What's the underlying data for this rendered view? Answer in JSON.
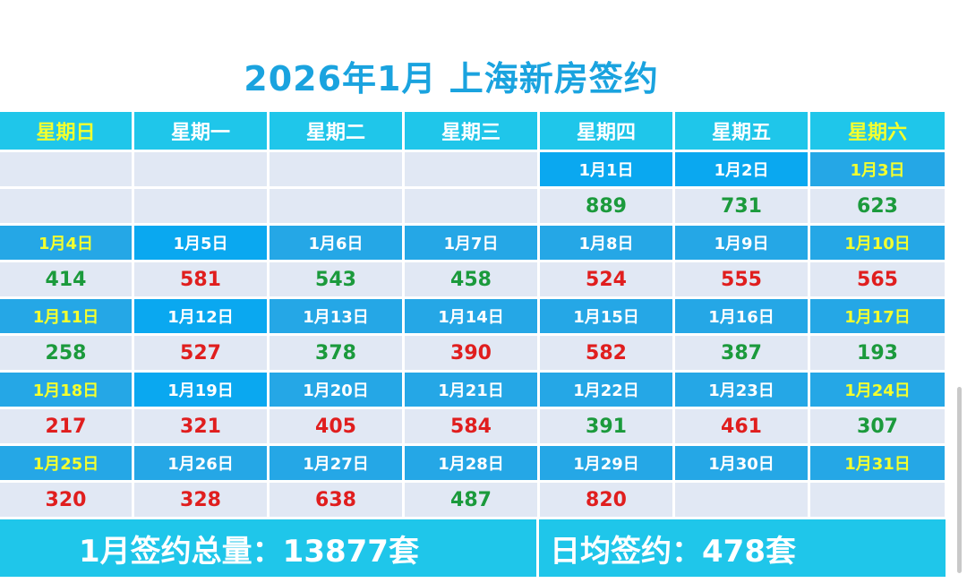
{
  "title": "2026年1月 上海新房签约",
  "weekdays": [
    "星期日",
    "星期一",
    "星期二",
    "星期三",
    "星期四",
    "星期五",
    "星期六"
  ],
  "weeks": [
    {
      "dates": [
        "",
        "",
        "",
        "",
        "1月1日",
        "1月2日",
        "1月3日"
      ],
      "values": [
        "",
        "",
        "",
        "",
        "889",
        "731",
        "623"
      ]
    },
    {
      "dates": [
        "1月4日",
        "1月5日",
        "1月6日",
        "1月7日",
        "1月8日",
        "1月9日",
        "1月10日"
      ],
      "values": [
        "414",
        "581",
        "543",
        "458",
        "524",
        "555",
        "565"
      ]
    },
    {
      "dates": [
        "1月11日",
        "1月12日",
        "1月13日",
        "1月14日",
        "1月15日",
        "1月16日",
        "1月17日"
      ],
      "values": [
        "258",
        "527",
        "378",
        "390",
        "582",
        "387",
        "193"
      ]
    },
    {
      "dates": [
        "1月18日",
        "1月19日",
        "1月20日",
        "1月21日",
        "1月22日",
        "1月23日",
        "1月24日"
      ],
      "values": [
        "217",
        "321",
        "405",
        "584",
        "391",
        "461",
        "307"
      ]
    },
    {
      "dates": [
        "1月25日",
        "1月26日",
        "1月27日",
        "1月28日",
        "1月29日",
        "1月30日",
        "1月31日"
      ],
      "values": [
        "320",
        "328",
        "638",
        "487",
        "820",
        "",
        ""
      ]
    }
  ],
  "summary": {
    "total": "1月签约总量：13877套",
    "average": "日均签约：478套"
  },
  "colors": {
    "title": "#1aa3df",
    "header_bg": "#1fc6ea",
    "date_bg": "#25a7e6",
    "cell_bg": "#e1e8f4",
    "weekend_text": "#f4ff2e",
    "high_value": "#e01e1e",
    "low_value": "#1b9a3c"
  }
}
